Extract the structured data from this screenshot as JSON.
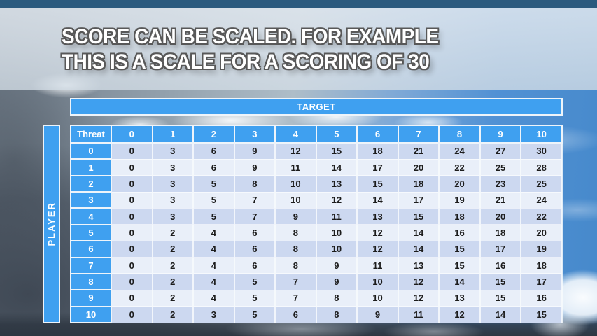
{
  "slide": {
    "title_line1": "SCORE CAN BE SCALED. FOR EXAMPLE",
    "title_line2": "THIS IS A SCALE FOR A SCORING OF 30"
  },
  "table": {
    "target_label": "TARGET",
    "player_label": "PLAYER",
    "corner_label": "Threat",
    "column_headers": [
      "0",
      "1",
      "2",
      "3",
      "4",
      "5",
      "6",
      "7",
      "8",
      "9",
      "10"
    ],
    "rows": [
      {
        "label": "0",
        "values": [
          0,
          3,
          6,
          9,
          12,
          15,
          18,
          21,
          24,
          27,
          30
        ]
      },
      {
        "label": "1",
        "values": [
          0,
          3,
          6,
          9,
          11,
          14,
          17,
          20,
          22,
          25,
          28
        ]
      },
      {
        "label": "2",
        "values": [
          0,
          3,
          5,
          8,
          10,
          13,
          15,
          18,
          20,
          23,
          25
        ]
      },
      {
        "label": "3",
        "values": [
          0,
          3,
          5,
          7,
          10,
          12,
          14,
          17,
          19,
          21,
          24
        ]
      },
      {
        "label": "4",
        "values": [
          0,
          3,
          5,
          7,
          9,
          11,
          13,
          15,
          18,
          20,
          22
        ]
      },
      {
        "label": "5",
        "values": [
          0,
          2,
          4,
          6,
          8,
          10,
          12,
          14,
          16,
          18,
          20
        ]
      },
      {
        "label": "6",
        "values": [
          0,
          2,
          4,
          6,
          8,
          10,
          12,
          14,
          15,
          17,
          19
        ]
      },
      {
        "label": "7",
        "values": [
          0,
          2,
          4,
          6,
          8,
          9,
          11,
          13,
          15,
          16,
          18
        ]
      },
      {
        "label": "8",
        "values": [
          0,
          2,
          4,
          5,
          7,
          9,
          10,
          12,
          14,
          15,
          17
        ]
      },
      {
        "label": "9",
        "values": [
          0,
          2,
          4,
          5,
          7,
          8,
          10,
          12,
          13,
          15,
          16
        ]
      },
      {
        "label": "10",
        "values": [
          0,
          2,
          3,
          5,
          6,
          8,
          9,
          11,
          12,
          14,
          15
        ]
      }
    ]
  },
  "colors": {
    "header_blue": "#3fa0f0",
    "row_shade_dark": "#ccd8f0",
    "row_shade_light": "#e9eff9",
    "cell_text": "#1c1c1c",
    "title_text": "#ffffff",
    "title_outline": "#585858"
  },
  "chart_data": {
    "type": "table",
    "title": "SCORE CAN BE SCALED. FOR EXAMPLE THIS IS A SCALE FOR A SCORING OF 30",
    "x_axis_label": "TARGET",
    "y_axis_label": "PLAYER",
    "corner_label": "Threat",
    "columns": [
      "0",
      "1",
      "2",
      "3",
      "4",
      "5",
      "6",
      "7",
      "8",
      "9",
      "10"
    ],
    "rows": [
      "0",
      "1",
      "2",
      "3",
      "4",
      "5",
      "6",
      "7",
      "8",
      "9",
      "10"
    ],
    "values": [
      [
        0,
        3,
        6,
        9,
        12,
        15,
        18,
        21,
        24,
        27,
        30
      ],
      [
        0,
        3,
        6,
        9,
        11,
        14,
        17,
        20,
        22,
        25,
        28
      ],
      [
        0,
        3,
        5,
        8,
        10,
        13,
        15,
        18,
        20,
        23,
        25
      ],
      [
        0,
        3,
        5,
        7,
        10,
        12,
        14,
        17,
        19,
        21,
        24
      ],
      [
        0,
        3,
        5,
        7,
        9,
        11,
        13,
        15,
        18,
        20,
        22
      ],
      [
        0,
        2,
        4,
        6,
        8,
        10,
        12,
        14,
        16,
        18,
        20
      ],
      [
        0,
        2,
        4,
        6,
        8,
        10,
        12,
        14,
        15,
        17,
        19
      ],
      [
        0,
        2,
        4,
        6,
        8,
        9,
        11,
        13,
        15,
        16,
        18
      ],
      [
        0,
        2,
        4,
        5,
        7,
        9,
        10,
        12,
        14,
        15,
        17
      ],
      [
        0,
        2,
        4,
        5,
        7,
        8,
        10,
        12,
        13,
        15,
        16
      ],
      [
        0,
        2,
        3,
        5,
        6,
        8,
        9,
        11,
        12,
        14,
        15
      ]
    ]
  }
}
